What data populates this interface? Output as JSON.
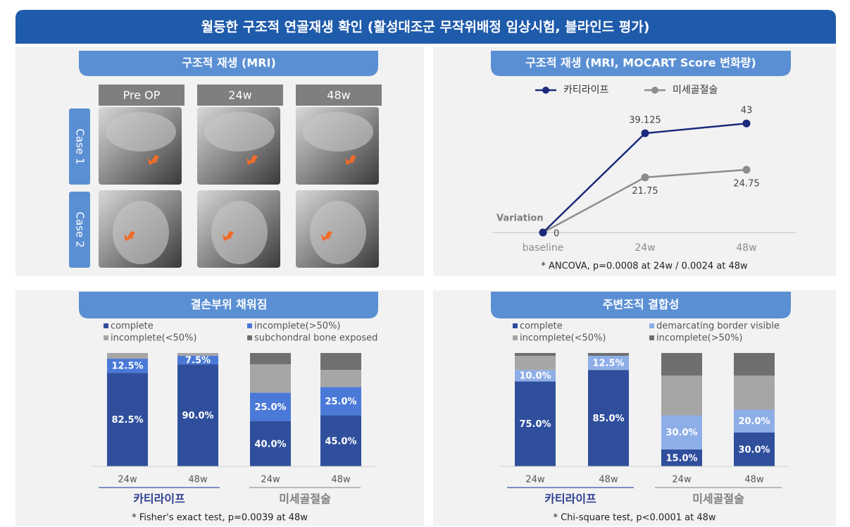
{
  "header": {
    "title": "월등한 구조적 연골재생 확인 (활성대조군 무작위배정 임상시험, 블라인드 평가)"
  },
  "mri_panel": {
    "title": "구조적 재생 (MRI)",
    "columns": [
      "Pre OP",
      "24w",
      "48w"
    ],
    "rows": [
      "Case 1",
      "Case 2"
    ]
  },
  "chart_data": [
    {
      "type": "line",
      "title": "구조적 재생 (MRI, MOCART Score 변화량)",
      "y_label": "Variation",
      "categories": [
        "baseline",
        "24w",
        "48w"
      ],
      "series": [
        {
          "name": "카티라이프",
          "color": "#1b2a7a",
          "values": [
            0,
            39.125,
            43
          ]
        },
        {
          "name": "미세골절술",
          "color": "#8c8c8c",
          "values": [
            0,
            21.75,
            24.75
          ]
        }
      ],
      "ylim": [
        0,
        50
      ],
      "note": "* ANCOVA, p=0.0008 at 24w / 0.0024 at 48w"
    },
    {
      "type": "bar",
      "stacked": true,
      "title": "결손부위 채워짐",
      "categories": [
        "24w",
        "48w",
        "24w",
        "48w"
      ],
      "groups": [
        "카티라이프",
        "미세골절술"
      ],
      "series": [
        {
          "name": "complete",
          "color": "#2f4f9d",
          "values": [
            82.5,
            90.0,
            40.0,
            45.0
          ],
          "value_labels": [
            "82.5%",
            "90.0%",
            "40.0%",
            "45.0%"
          ]
        },
        {
          "name": "incomplete(>50%)",
          "color": "#4a79d8",
          "values": [
            12.5,
            7.5,
            25.0,
            25.0
          ],
          "value_labels": [
            "12.5%",
            "7.5%",
            "25.0%",
            "25.0%"
          ]
        },
        {
          "name": "incomplete(<50%)",
          "color": "#a6a6a6",
          "values": [
            5,
            2.5,
            25,
            15
          ]
        },
        {
          "name": "subchondral bone exposed",
          "color": "#707070",
          "values": [
            0,
            0,
            10,
            15
          ]
        }
      ],
      "ylim": [
        0,
        100
      ],
      "note": "* Fisher's exact test, p=0.0039 at 48w"
    },
    {
      "type": "bar",
      "stacked": true,
      "title": "주변조직 결합성",
      "categories": [
        "24w",
        "48w",
        "24w",
        "48w"
      ],
      "groups": [
        "카티라이프",
        "미세골절술"
      ],
      "series": [
        {
          "name": "complete",
          "color": "#2f4f9d",
          "values": [
            75.0,
            85.0,
            15.0,
            30.0
          ],
          "value_labels": [
            "75.0%",
            "85.0%",
            "15.0%",
            "30.0%"
          ]
        },
        {
          "name": "demarcating border visible",
          "color": "#8eaee8",
          "values": [
            10.0,
            12.5,
            30.0,
            20.0
          ],
          "value_labels": [
            "10.0%",
            "12.5%",
            "30.0%",
            "20.0%"
          ]
        },
        {
          "name": "incomplete(<50%)",
          "color": "#a6a6a6",
          "values": [
            12.5,
            0,
            35,
            30
          ]
        },
        {
          "name": "incomplete(>50%)",
          "color": "#6f6f6f",
          "values": [
            2.5,
            2.5,
            20,
            20
          ]
        }
      ],
      "ylim": [
        0,
        100
      ],
      "note": "* Chi-square test, p<0.0001 at 48w"
    }
  ]
}
